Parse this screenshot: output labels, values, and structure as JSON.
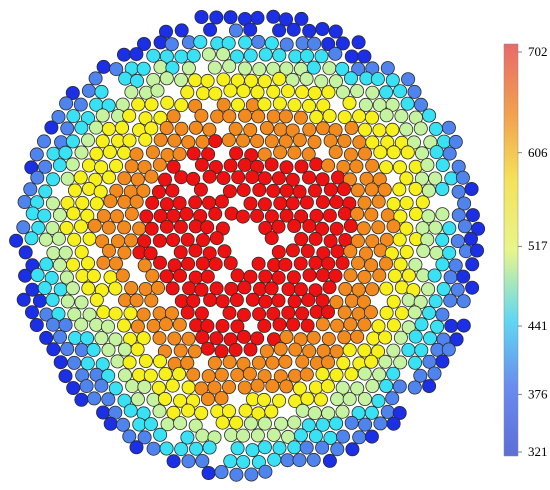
{
  "chart_data": {
    "type": "heatmap",
    "title": "",
    "xlabel": "",
    "ylabel": "",
    "grid": false,
    "colorbar": {
      "placement": "right",
      "min": 321,
      "max": 702,
      "ticks": [
        702,
        606,
        517,
        441,
        376,
        321
      ],
      "colormap": [
        "#00008f",
        "#0000ff",
        "#00ffff",
        "#ffff00",
        "#ff0000",
        "#800000"
      ]
    },
    "region": {
      "shape": "circle",
      "value_range": [
        321,
        702
      ],
      "pattern": "radial"
    },
    "bands": [
      {
        "value": 690,
        "color": "#ee1111"
      },
      {
        "value": 620,
        "color": "#f28a1e"
      },
      {
        "value": 555,
        "color": "#f7f01a"
      },
      {
        "value": 490,
        "color": "#c5f3a0"
      },
      {
        "value": 440,
        "color": "#39e1f5"
      },
      {
        "value": 380,
        "color": "#4f84ef"
      },
      {
        "value": 330,
        "color": "#1a2fe6"
      }
    ]
  }
}
